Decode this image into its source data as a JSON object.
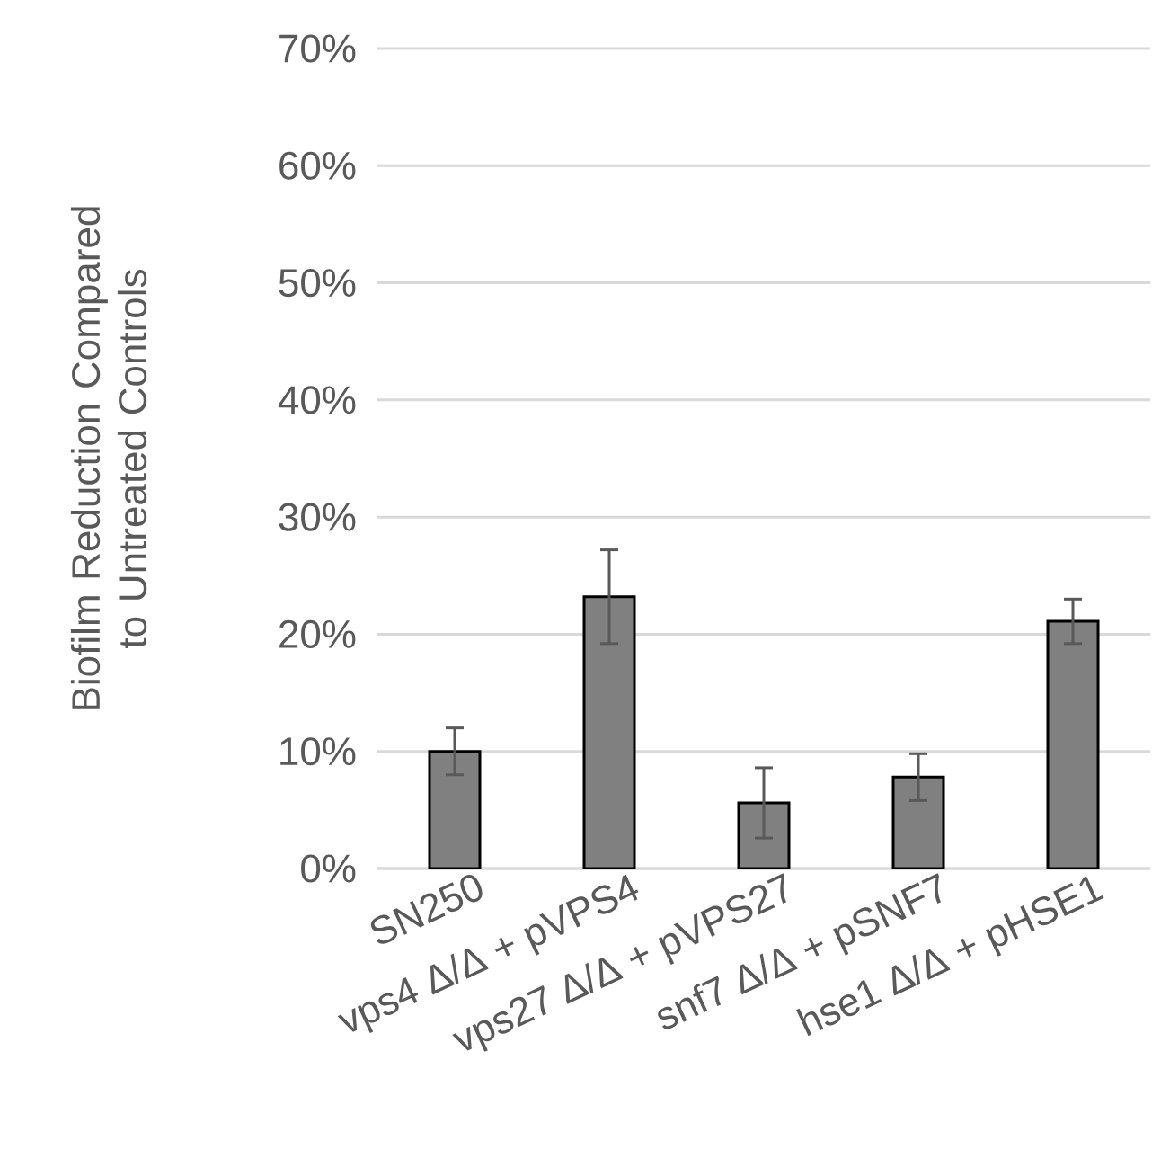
{
  "chart_data": {
    "type": "bar",
    "ylabel": "Biofilm Reduction Compared to Untreated Controls",
    "categories": [
      "SN250",
      "vps4 Δ/Δ + pVPS4",
      "vps27 Δ/Δ + pVPS27",
      "snf7 Δ/Δ + pSNF7",
      "hse1 Δ/Δ + pHSE1"
    ],
    "values": [
      10.0,
      23.2,
      5.6,
      7.8,
      21.1
    ],
    "errors": [
      2.0,
      4.0,
      3.0,
      2.0,
      1.9
    ],
    "color": "#808080",
    "ylim": [
      0,
      70
    ],
    "yticks": [
      {
        "value": 0,
        "label": "0%"
      },
      {
        "value": 10,
        "label": "10%"
      },
      {
        "value": 20,
        "label": "20%"
      },
      {
        "value": 30,
        "label": "30%"
      },
      {
        "value": 40,
        "label": "40%"
      },
      {
        "value": 50,
        "label": "50%"
      },
      {
        "value": 60,
        "label": "60%"
      },
      {
        "value": 70,
        "label": "70%"
      }
    ],
    "grid": "y"
  }
}
